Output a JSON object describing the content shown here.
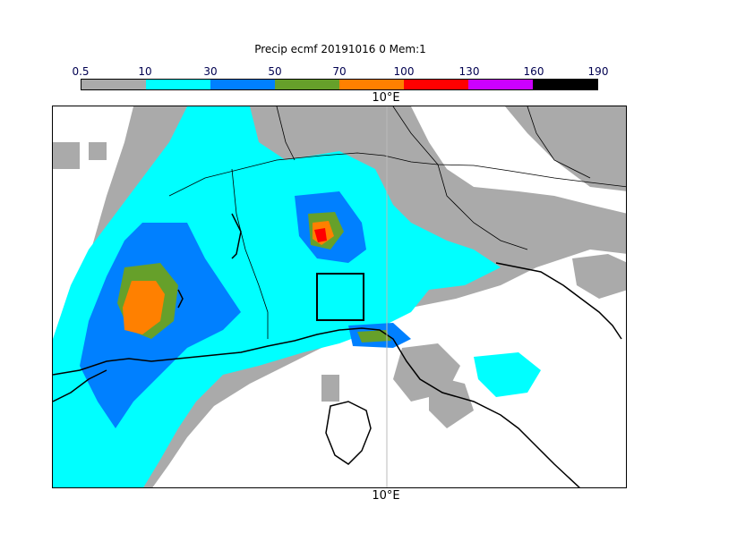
{
  "title": "Precip ecmf 20191016 0 Mem:1",
  "colorbar": {
    "labels": [
      "0.5",
      "10",
      "30",
      "50",
      "70",
      "100",
      "130",
      "160",
      "190"
    ],
    "colors": [
      "#aaaaaa",
      "#00ffff",
      "#0080ff",
      "#66a02a",
      "#ff8000",
      "#ff0000",
      "#cc00ff",
      "#000000"
    ]
  },
  "map": {
    "longitude_label_top": "10°E",
    "longitude_label_bottom": "10°E",
    "colors": {
      "light": "#aaaaaa",
      "cyan": "#00ffff",
      "blue": "#0080ff",
      "green": "#66a02a",
      "orange": "#ff8000",
      "red": "#ff0000",
      "lines": "#000000"
    },
    "highlight_box": "selected region"
  }
}
